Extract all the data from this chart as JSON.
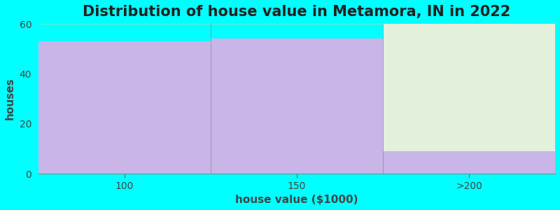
{
  "title": "Distribution of house value in Metamora, IN in 2022",
  "xlabel": "house value ($1000)",
  "ylabel": "houses",
  "categories": [
    "100",
    "150",
    ">200"
  ],
  "values": [
    53,
    54,
    9
  ],
  "bar_color": "#c9b5e8",
  "bar_edgecolor": "#aaaaaa",
  "green_area_color": "#e2f0dc",
  "ylim": [
    0,
    60
  ],
  "yticks": [
    0,
    20,
    40,
    60
  ],
  "background_color": "#00ffff",
  "plot_bg_color": "#00ffff",
  "title_fontsize": 15,
  "axis_label_fontsize": 11,
  "tick_fontsize": 10,
  "title_color": "#222222",
  "label_color": "#444444",
  "tick_color": "#444444"
}
